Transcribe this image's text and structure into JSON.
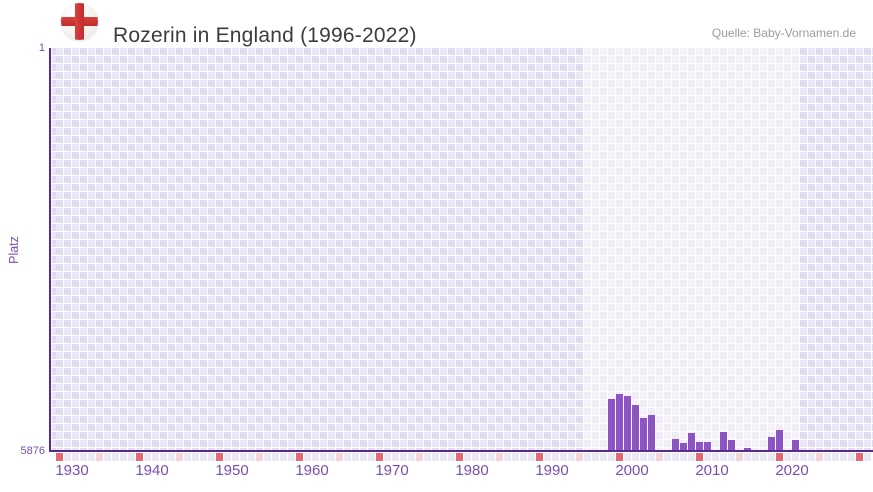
{
  "header": {
    "title": "Rozerin in England (1996-2022)",
    "source": "Quelle: Baby-Vornamen.de",
    "flag_icon": "england-flag"
  },
  "colors": {
    "bar": "#8d55c3",
    "axis": "#552b8c",
    "tick_label": "#7a4daf",
    "checker_dark": "#e1dbef",
    "checker_light": "#eae5f5",
    "strip_cell": "#ebe7f5",
    "strip_decade_marker": "#e4696f",
    "strip_half_decade_marker": "#f2d3da",
    "title_text": "#3d3d3d",
    "source_text": "#9b9b9b",
    "flag_red": "#cf3232"
  },
  "chart_data": {
    "type": "bar",
    "title": "Rozerin in England (1996-2022)",
    "xlabel": "",
    "ylabel": "Platz",
    "y_axis": {
      "min": 1,
      "max": 5876,
      "inverted": true,
      "top_label": "1",
      "bottom_label": "5876"
    },
    "x_axis": {
      "range": [
        1926,
        2032
      ],
      "minor_tick_every": 5,
      "ticks": [
        {
          "year": 1930,
          "label": "1930"
        },
        {
          "year": 1940,
          "label": "1940"
        },
        {
          "year": 1950,
          "label": "1950"
        },
        {
          "year": 1960,
          "label": "1960"
        },
        {
          "year": 1970,
          "label": "1970"
        },
        {
          "year": 1980,
          "label": "1980"
        },
        {
          "year": 1990,
          "label": "1990"
        },
        {
          "year": 2000,
          "label": "2000"
        },
        {
          "year": 2010,
          "label": "2010"
        },
        {
          "year": 2020,
          "label": "2020"
        }
      ]
    },
    "highlight_range": {
      "from": 1996,
      "to": 2022
    },
    "legend": null,
    "grid": true,
    "points": [
      {
        "year": 1999,
        "rank": 5131
      },
      {
        "year": 2000,
        "rank": 5058
      },
      {
        "year": 2001,
        "rank": 5087
      },
      {
        "year": 2002,
        "rank": 5218
      },
      {
        "year": 2003,
        "rank": 5408
      },
      {
        "year": 2004,
        "rank": 5364
      },
      {
        "year": 2007,
        "rank": 5716
      },
      {
        "year": 2008,
        "rank": 5774
      },
      {
        "year": 2009,
        "rank": 5628
      },
      {
        "year": 2010,
        "rank": 5760
      },
      {
        "year": 2011,
        "rank": 5760
      },
      {
        "year": 2013,
        "rank": 5614
      },
      {
        "year": 2014,
        "rank": 5731
      },
      {
        "year": 2016,
        "rank": 5847
      },
      {
        "year": 2019,
        "rank": 5687
      },
      {
        "year": 2020,
        "rank": 5584
      },
      {
        "year": 2022,
        "rank": 5731
      }
    ]
  }
}
